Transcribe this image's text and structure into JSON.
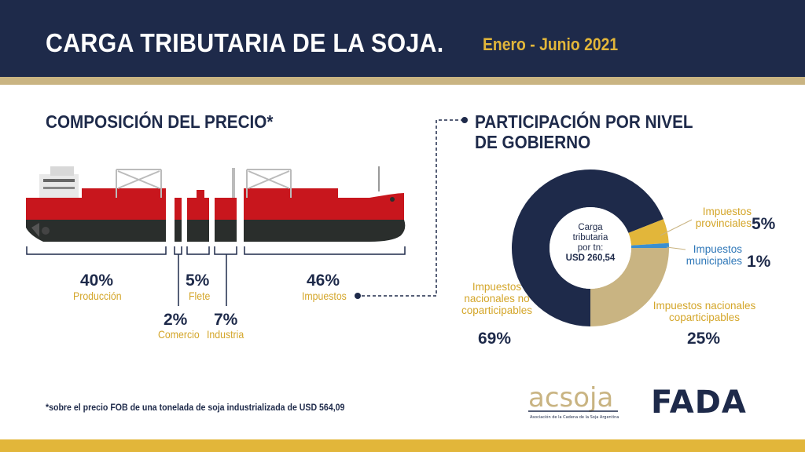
{
  "header": {
    "title": "CARGA TRIBUTARIA DE LA SOJA.",
    "subtitle": "Enero - Junio 2021"
  },
  "composition": {
    "title": "COMPOSICIÓN DEL PRECIO*",
    "items": [
      {
        "pct": "40%",
        "label": "Producción"
      },
      {
        "pct": "2%",
        "label": "Comercio"
      },
      {
        "pct": "5%",
        "label": "Flete"
      },
      {
        "pct": "7%",
        "label": "Industria"
      },
      {
        "pct": "46%",
        "label": "Impuestos"
      }
    ]
  },
  "participation": {
    "title_line1": "PARTICIPACIÓN POR NIVEL",
    "title_line2": "DE GOBIERNO",
    "center_line1": "Carga",
    "center_line2": "tributaria",
    "center_line3": "por tn:",
    "center_value": "USD 260,54",
    "labels": {
      "nac_no_cop_1": "Impuestos",
      "nac_no_cop_2": "nacionales no",
      "nac_no_cop_3": "coparticipables",
      "nac_no_cop_pct": "69%",
      "prov_1": "Impuestos",
      "prov_2": "provinciales",
      "prov_pct": "5%",
      "mun_1": "Impuestos",
      "mun_2": "municipales",
      "mun_pct": "1%",
      "nac_cop_1": "Impuestos nacionales",
      "nac_cop_2": "coparticipables",
      "nac_cop_pct": "25%"
    }
  },
  "chart_data": [
    {
      "type": "bar",
      "title": "COMPOSICIÓN DEL PRECIO*",
      "categories": [
        "Producción",
        "Comercio",
        "Flete",
        "Industria",
        "Impuestos"
      ],
      "values": [
        40,
        2,
        5,
        7,
        46
      ],
      "unit": "%"
    },
    {
      "type": "pie",
      "title": "PARTICIPACIÓN POR NIVEL DE GOBIERNO",
      "categories": [
        "Impuestos nacionales no coparticipables",
        "Impuestos provinciales",
        "Impuestos municipales",
        "Impuestos nacionales coparticipables"
      ],
      "values": [
        69,
        5,
        1,
        25
      ],
      "colors": [
        "#1e2a4a",
        "#e2b63a",
        "#3a8fd1",
        "#c9b482"
      ]
    }
  ],
  "footnote": "*sobre el precio FOB de una tonelada de soja industrializada de USD 564,09",
  "logos": {
    "acsoja": "acsoja",
    "acsoja_sub": "Asociación de la Cadena de la Soja Argentina",
    "fada": "FADA"
  },
  "colors": {
    "navy": "#1e2a4a",
    "gold": "#e2b63a",
    "tan": "#c9b482",
    "blue": "#3a8fd1",
    "hull_red": "#c8161d",
    "hull_dark": "#2a2e2c"
  }
}
